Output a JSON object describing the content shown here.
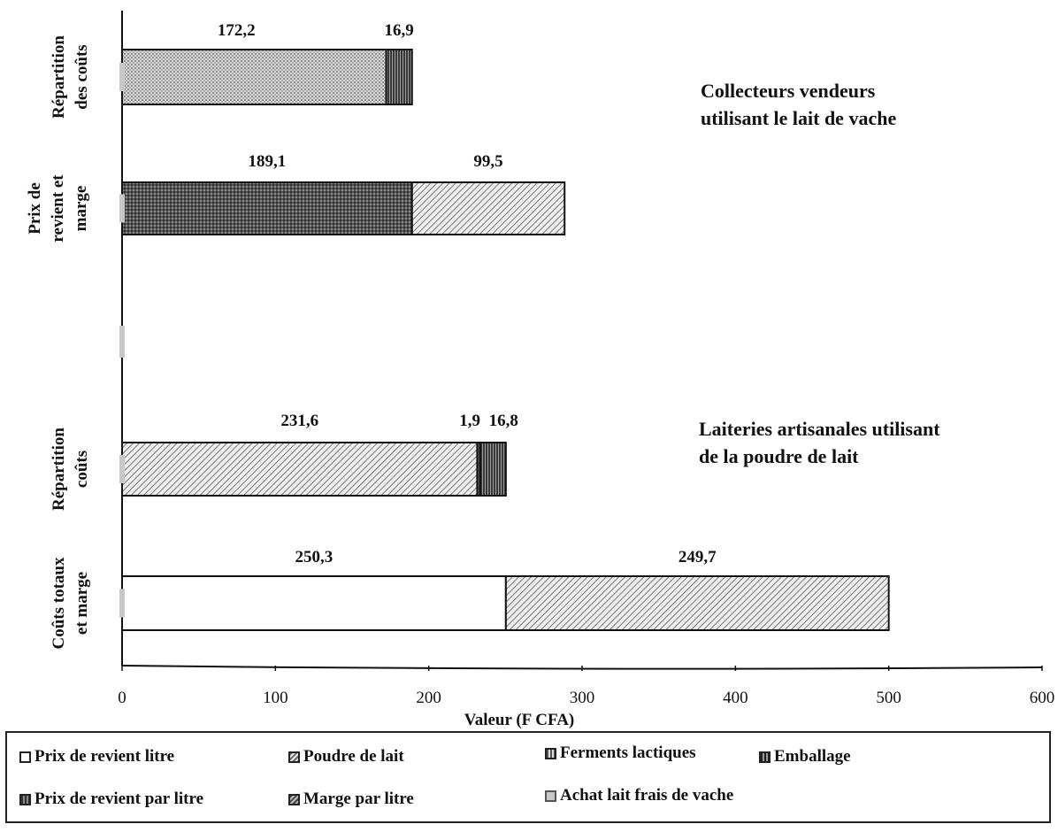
{
  "chart_data": {
    "type": "bar",
    "orientation": "horizontal",
    "stacked": true,
    "title": "",
    "xlabel": "Valeur (F CFA)",
    "xlim": [
      0,
      600
    ],
    "xticks": [
      "0",
      "100",
      "200",
      "300",
      "400",
      "500",
      "600"
    ],
    "categories": [
      {
        "id": "cv_rep",
        "label": "Répartition des coûts",
        "lines": [
          "Répartition",
          "des coûts"
        ]
      },
      {
        "id": "cv_prm",
        "label": "Prix de revient et marge",
        "lines": [
          "Prix de",
          "revient et",
          "marge"
        ]
      },
      {
        "id": "la_rep",
        "label": "Répartition coûts",
        "lines": [
          "Répartition",
          "coûts"
        ]
      },
      {
        "id": "la_ctm",
        "label": "Coûts totaux et marge",
        "lines": [
          "Coûts totaux",
          "et marge"
        ]
      }
    ],
    "bars": [
      {
        "category": "cv_rep",
        "segments": [
          {
            "series": "Achat lait frais de vache",
            "value": 172.2,
            "label": "172,2"
          },
          {
            "series": "Emballage",
            "value": 16.9,
            "label": "16,9"
          }
        ]
      },
      {
        "category": "cv_prm",
        "segments": [
          {
            "series": "Prix de revient par litre",
            "value": 189.1,
            "label": "189,1"
          },
          {
            "series": "Marge par litre",
            "value": 99.5,
            "label": "99,5"
          }
        ]
      },
      {
        "category": "la_rep",
        "segments": [
          {
            "series": "Poudre de lait",
            "value": 231.6,
            "label": "231,6"
          },
          {
            "series": "Ferments lactiques",
            "value": 1.9,
            "label": "1,9"
          },
          {
            "series": "Emballage",
            "value": 16.8,
            "label": "16,8"
          }
        ]
      },
      {
        "category": "la_ctm",
        "segments": [
          {
            "series": "Prix de revient litre",
            "value": 250.3,
            "label": "250,3"
          },
          {
            "series": "Marge par litre",
            "value": 249.7,
            "label": "249,7"
          }
        ]
      }
    ],
    "annotations": [
      {
        "text_lines": [
          "Collecteurs vendeurs",
          "utilisant le lait de vache"
        ]
      },
      {
        "text_lines": [
          "Laiteries artisanales utilisant",
          "de la poudre de lait"
        ]
      }
    ],
    "legend": {
      "placement": "bottom",
      "entries": [
        {
          "name": "Prix de revient litre",
          "swatch": "sw-prl"
        },
        {
          "name": "Poudre de lait",
          "swatch": "sw-pdl"
        },
        {
          "name": "Ferments lactiques",
          "swatch": "sw-fer"
        },
        {
          "name": "Emballage",
          "swatch": "sw-emb"
        },
        {
          "name": "Prix de revient par litre",
          "swatch": "sw-prpl"
        },
        {
          "name": "Marge par litre",
          "swatch": "sw-mpl"
        },
        {
          "name": "Achat lait frais de vache",
          "swatch": "sw-alv"
        }
      ]
    },
    "grid": false
  }
}
